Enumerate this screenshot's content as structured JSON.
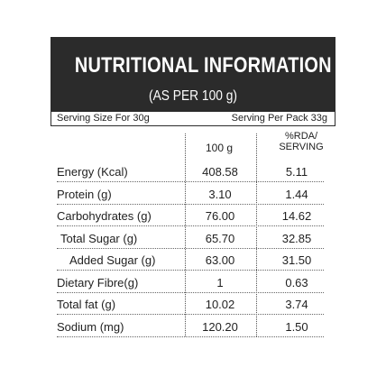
{
  "header": {
    "title": "NUTRITIONAL INFORMATION",
    "subtitle": "(AS PER 100 g)"
  },
  "serving": {
    "size": "Serving Size For 30g",
    "per_pack": "Serving Per Pack 33g"
  },
  "columns": {
    "per100": "100 g",
    "rda": "%RDA/\nSERVING"
  },
  "rows": [
    {
      "label": "Energy (Kcal)",
      "per100": "408.58",
      "rda": "5.11"
    },
    {
      "label": "Protein (g)",
      "per100": "3.10",
      "rda": "1.44"
    },
    {
      "label": "Carbohydrates (g)",
      "per100": "76.00",
      "rda": "14.62"
    },
    {
      "label": "Total Sugar (g)",
      "per100": "65.70",
      "rda": "32.85"
    },
    {
      "label": "Added Sugar (g)",
      "per100": "63.00",
      "rda": "31.50"
    },
    {
      "label": "Dietary Fibre(g)",
      "per100": "1",
      "rda": "0.63"
    },
    {
      "label": "Total fat (g)",
      "per100": "10.02",
      "rda": "3.74"
    },
    {
      "label": "Sodium (mg)",
      "per100": "120.20",
      "rda": "1.50"
    }
  ]
}
